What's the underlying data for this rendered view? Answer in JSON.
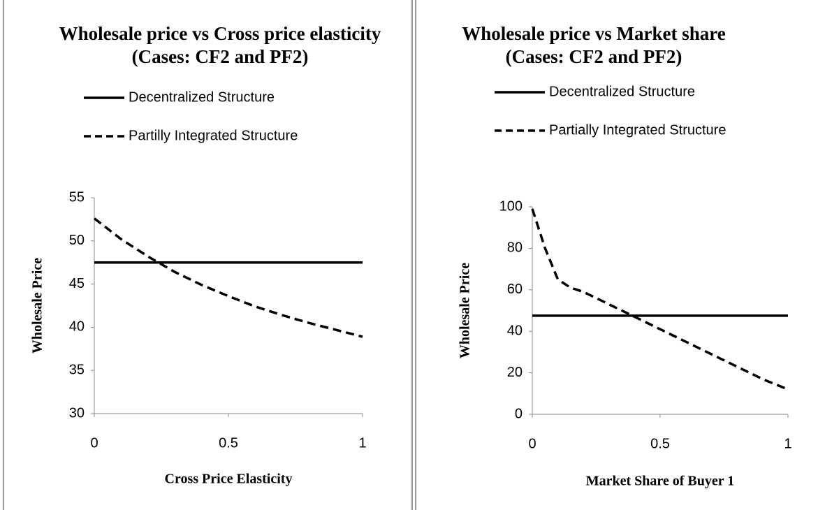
{
  "chart_data": [
    {
      "type": "line",
      "title": "Wholesale price vs Cross price elasticity (Cases: CF2 and PF2)",
      "xlabel": "Cross Price Elasticity",
      "ylabel": "Wholesale Price",
      "x": [
        0,
        0.1,
        0.2,
        0.3,
        0.4,
        0.5,
        0.6,
        0.7,
        0.8,
        0.9,
        1
      ],
      "series": [
        {
          "name": "Decentralized Structure",
          "color": "#000000",
          "dash": "solid",
          "values": [
            47.5,
            47.5,
            47.5,
            47.5,
            47.5,
            47.5,
            47.5,
            47.5,
            47.5,
            47.5,
            47.5
          ]
        },
        {
          "name": "Partilly Integrated Structure",
          "color": "#000000",
          "dash": "dashed",
          "values": [
            52.6,
            50.2,
            48.2,
            46.4,
            44.9,
            43.6,
            42.4,
            41.4,
            40.5,
            39.7,
            38.9
          ]
        }
      ],
      "xlim": [
        0,
        1
      ],
      "xticks": [
        0,
        0.5,
        1
      ],
      "ylim": [
        30,
        55
      ],
      "yticks": [
        30,
        35,
        40,
        45,
        50,
        55
      ]
    },
    {
      "type": "line",
      "title": "Wholesale price vs Market share (Cases: CF2 and PF2)",
      "xlabel": "Market Share of Buyer 1",
      "ylabel": "Wholesale Price",
      "x": [
        0,
        0.05,
        0.1,
        0.15,
        0.2,
        0.3,
        0.4,
        0.5,
        0.6,
        0.7,
        0.8,
        0.9,
        1
      ],
      "series": [
        {
          "name": "Decentralized Structure",
          "color": "#000000",
          "dash": "solid",
          "values": [
            47.5,
            47.5,
            47.5,
            47.5,
            47.5,
            47.5,
            47.5,
            47.5,
            47.5,
            47.5,
            47.5,
            47.5,
            47.5
          ]
        },
        {
          "name": "Partially Integrated Structure",
          "color": "#000000",
          "dash": "dashed",
          "values": [
            99,
            80,
            65,
            61,
            59,
            53,
            47,
            41,
            35,
            29,
            23,
            17,
            12
          ]
        }
      ],
      "xlim": [
        0,
        1
      ],
      "xticks": [
        0,
        0.5,
        1
      ],
      "ylim": [
        0,
        100
      ],
      "yticks": [
        0,
        20,
        40,
        60,
        80,
        100
      ]
    }
  ]
}
